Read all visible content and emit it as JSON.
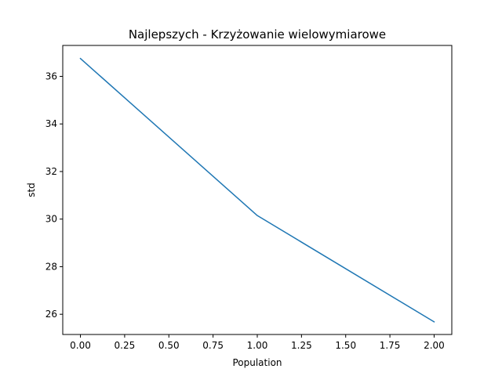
{
  "chart_data": {
    "type": "line",
    "title": "Najlepszych - Krzyżowanie wielowymiarowe",
    "xlabel": "Population",
    "ylabel": "std",
    "xlim": [
      -0.1,
      2.1
    ],
    "ylim": [
      25.15,
      37.3
    ],
    "x_ticks": [
      0.0,
      0.25,
      0.5,
      0.75,
      1.0,
      1.25,
      1.5,
      1.75,
      2.0
    ],
    "x_tick_labels": [
      "0.00",
      "0.25",
      "0.50",
      "0.75",
      "1.00",
      "1.25",
      "1.50",
      "1.75",
      "2.00"
    ],
    "y_ticks": [
      26,
      28,
      30,
      32,
      34,
      36
    ],
    "y_tick_labels": [
      "26",
      "28",
      "30",
      "32",
      "34",
      "36"
    ],
    "grid": false,
    "legend": "none",
    "series": [
      {
        "color": "#1f77b4",
        "x": [
          0,
          1,
          2
        ],
        "y": [
          36.75,
          30.15,
          25.68
        ]
      }
    ]
  }
}
